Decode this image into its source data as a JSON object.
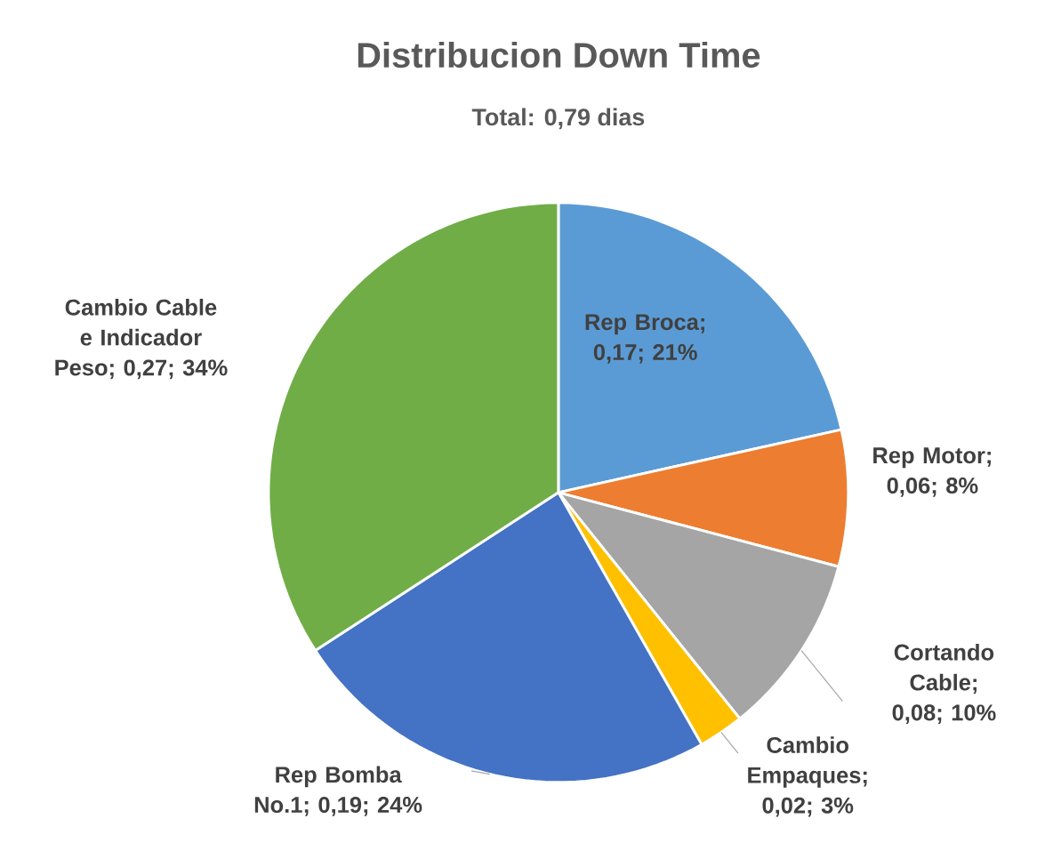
{
  "chart_data": {
    "type": "pie",
    "title": "Distribucion Down Time",
    "subtitle": "Total: 0,79 dias",
    "categories": [
      "Rep Broca",
      "Rep Motor",
      "Cortando Cable",
      "Cambio Empaques",
      "Rep Bomba No.1",
      "Cambio Cable e Indicador Peso"
    ],
    "values": [
      0.17,
      0.06,
      0.08,
      0.02,
      0.19,
      0.27
    ],
    "colors": [
      "#5b9bd5",
      "#ed7d31",
      "#a5a5a5",
      "#ffc000",
      "#4472c4",
      "#70ad47"
    ],
    "value_labels": [
      "; 0,17; 21%",
      "; 0,06; 8%",
      "; 0,08; 10%",
      "; 0,02; 3%",
      "; 0,19; 24%",
      "; 0,27; 34%"
    ]
  }
}
